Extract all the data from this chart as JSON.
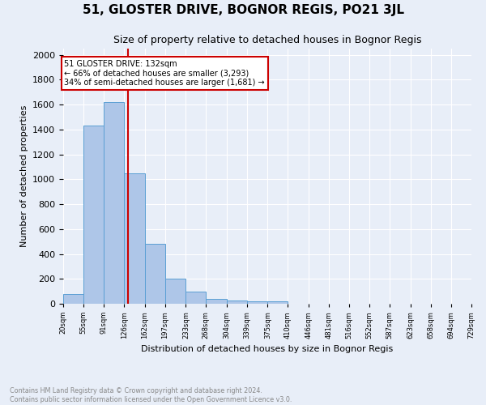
{
  "title": "51, GLOSTER DRIVE, BOGNOR REGIS, PO21 3JL",
  "subtitle": "Size of property relative to detached houses in Bognor Regis",
  "xlabel": "Distribution of detached houses by size in Bognor Regis",
  "ylabel": "Number of detached properties",
  "footnote1": "Contains HM Land Registry data © Crown copyright and database right 2024.",
  "footnote2": "Contains public sector information licensed under the Open Government Licence v3.0.",
  "annotation_line1": "51 GLOSTER DRIVE: 132sqm",
  "annotation_line2": "← 66% of detached houses are smaller (3,293)",
  "annotation_line3": "34% of semi-detached houses are larger (1,681) →",
  "bar_color": "#aec6e8",
  "bar_edge_color": "#5a9fd4",
  "vline_color": "#cc0000",
  "vline_x": 132,
  "bin_edges": [
    20,
    55,
    91,
    126,
    162,
    197,
    233,
    268,
    304,
    339,
    375,
    410,
    446,
    481,
    516,
    552,
    587,
    623,
    658,
    694,
    729
  ],
  "bin_heights": [
    80,
    1430,
    1620,
    1045,
    483,
    200,
    100,
    42,
    27,
    20,
    18,
    0,
    0,
    0,
    0,
    0,
    0,
    0,
    0,
    0
  ],
  "ylim": [
    0,
    2050
  ],
  "background_color": "#e8eef8",
  "plot_bg_color": "#e8eef8",
  "annotation_box_color": "#ffffff",
  "annotation_box_edge": "#cc0000",
  "title_fontsize": 11,
  "subtitle_fontsize": 9
}
